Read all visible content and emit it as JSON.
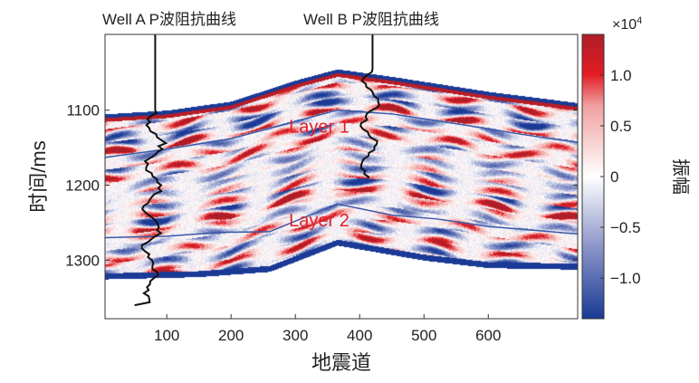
{
  "chart_data": {
    "type": "heatmap",
    "title": "",
    "xlabel": "地震道",
    "ylabel": "时间/ms",
    "xlim": [
      4,
      739
    ],
    "ylim": [
      1378,
      999
    ],
    "xticks": [
      100,
      200,
      300,
      400,
      500,
      600
    ],
    "yticks": [
      1100,
      1200,
      1300
    ],
    "colorbar": {
      "label": "振幅",
      "exponent_label": "×10",
      "exponent_power": "4",
      "range": [
        -1.4,
        1.4
      ],
      "ticks": [
        1.0,
        0.5,
        0,
        -0.5,
        -1.0
      ],
      "tick_labels": [
        "1.0",
        "0.5",
        "0",
        "−0.5",
        "−1.0"
      ],
      "colors": [
        "#1a3a96",
        "#8a94c8",
        "#ffffff",
        "#f0a0a0",
        "#e31b23",
        "#ad1e28"
      ]
    },
    "data_top": [
      [
        4,
        1105
      ],
      [
        100,
        1100
      ],
      [
        200,
        1088
      ],
      [
        300,
        1060
      ],
      [
        365,
        1045
      ],
      [
        450,
        1055
      ],
      [
        600,
        1075
      ],
      [
        739,
        1090
      ]
    ],
    "data_bottom": [
      [
        4,
        1325
      ],
      [
        150,
        1322
      ],
      [
        260,
        1315
      ],
      [
        365,
        1280
      ],
      [
        500,
        1300
      ],
      [
        600,
        1310
      ],
      [
        739,
        1312
      ]
    ],
    "horizons": [
      {
        "name": "Layer 1",
        "color": "#3a5aa8",
        "points": [
          [
            4,
            1163
          ],
          [
            100,
            1152
          ],
          [
            200,
            1138
          ],
          [
            300,
            1115
          ],
          [
            365,
            1100
          ],
          [
            450,
            1105
          ],
          [
            550,
            1118
          ],
          [
            650,
            1132
          ],
          [
            739,
            1143
          ]
        ]
      },
      {
        "name": "Layer 2",
        "color": "#3a5aa8",
        "points": [
          [
            4,
            1270
          ],
          [
            100,
            1268
          ],
          [
            180,
            1263
          ],
          [
            260,
            1262
          ],
          [
            365,
            1225
          ],
          [
            450,
            1240
          ],
          [
            520,
            1245
          ],
          [
            600,
            1255
          ],
          [
            739,
            1265
          ]
        ]
      }
    ],
    "horizon_labels": [
      {
        "text": "Layer 1",
        "trace": 290,
        "time": 1130,
        "color": "#e0202a"
      },
      {
        "text": "Layer 2",
        "trace": 290,
        "time": 1255,
        "color": "#e0202a"
      }
    ],
    "wells": [
      {
        "label": "Well A P波阻抗曲线",
        "trace": 82,
        "top": 999,
        "log_top": 1100,
        "log_bottom": 1360,
        "end_trace": 50
      },
      {
        "label": "Well B P波阻抗曲线",
        "trace": 420,
        "top": 999,
        "log_top": 1045,
        "log_bottom": 1190,
        "end_trace": 412
      }
    ]
  }
}
